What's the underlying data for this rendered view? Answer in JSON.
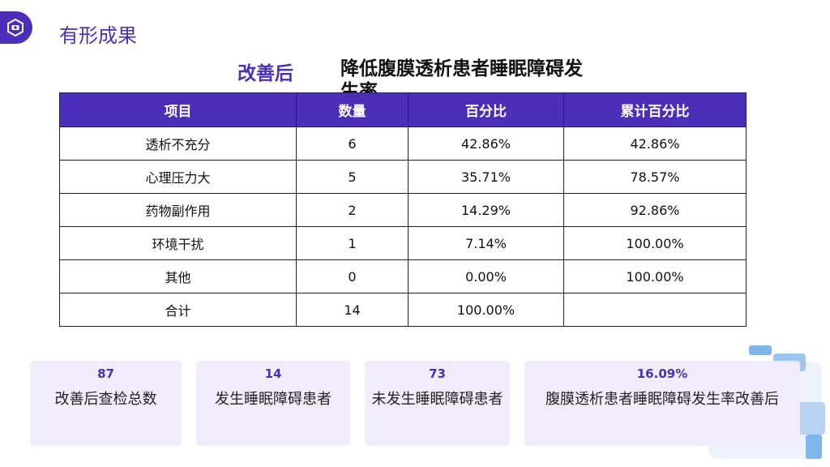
{
  "header": {
    "title": "有形成果",
    "subtitle_left": "改善后",
    "subtitle_right": "降低腹膜透析患者睡眠障碍发生率"
  },
  "table": {
    "columns": [
      "项目",
      "数量",
      "百分比",
      "累计百分比"
    ],
    "rows": [
      [
        "透析不充分",
        "6",
        "42.86%",
        "42.86%"
      ],
      [
        "心理压力大",
        "5",
        "35.71%",
        "78.57%"
      ],
      [
        "药物副作用",
        "2",
        "14.29%",
        "92.86%"
      ],
      [
        "环境干扰",
        "1",
        "7.14%",
        "100.00%"
      ],
      [
        "其他",
        "0",
        "0.00%",
        "100.00%"
      ],
      [
        "合计",
        "14",
        "100.00%",
        ""
      ]
    ]
  },
  "cards": [
    {
      "number": "87",
      "label": "改善后查检总数"
    },
    {
      "number": "14",
      "label": "发生睡眠障碍患者"
    },
    {
      "number": "73",
      "label": "未发生睡眠障碍患者"
    },
    {
      "number": "16.09%",
      "label": "腹膜透析患者睡眠障碍发生率改善后"
    }
  ],
  "icons": {
    "logo": "hexagon-plus-icon",
    "decoration": "medical-illustration"
  },
  "colors": {
    "accent": "#4b2fb8",
    "card_bg": "#f1ecfb"
  }
}
